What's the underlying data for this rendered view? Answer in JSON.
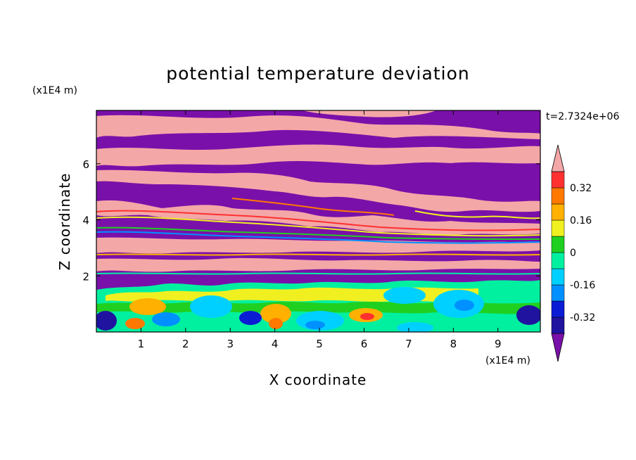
{
  "chart_data": {
    "type": "heatmap",
    "title": "potential temperature deviation",
    "xlabel": "X coordinate",
    "ylabel": "Z coordinate",
    "x_unit": "(x1E4 m)",
    "y_unit": "(x1E4 m)",
    "time_label": "t=2.7324e+06",
    "xlim": [
      0,
      9.95
    ],
    "ylim": [
      0,
      7.9
    ],
    "x_ticks": [
      1,
      2,
      3,
      4,
      5,
      6,
      7,
      8,
      9
    ],
    "y_ticks": [
      2,
      4,
      6
    ],
    "grid": false,
    "colorbar": {
      "placement": "right",
      "levels": [
        -0.4,
        -0.32,
        -0.24,
        -0.16,
        -0.08,
        0,
        0.08,
        0.16,
        0.24,
        0.32,
        0.4
      ],
      "tick_labels": [
        {
          "value": 0.32,
          "label": "0.32"
        },
        {
          "value": 0.16,
          "label": "0.16"
        },
        {
          "value": 0,
          "label": "0"
        },
        {
          "value": -0.16,
          "label": "-0.16"
        },
        {
          "value": -0.32,
          "label": "-0.32"
        }
      ],
      "colors": [
        "#7a10aa",
        "#1f139f",
        "#0a1cd4",
        "#0090ff",
        "#00d0ff",
        "#00f0a0",
        "#20d020",
        "#f0f020",
        "#ffb000",
        "#ff7800",
        "#ff3030",
        "#f4a7a7"
      ],
      "extend": "both"
    }
  }
}
